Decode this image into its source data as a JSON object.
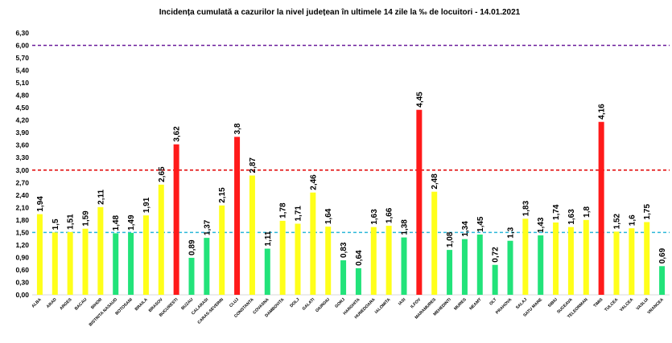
{
  "chart_data": {
    "type": "bar",
    "title": "Incidența cumulată a cazurilor la nivel județean în ultimele 14 zile   la ‰ de locuitori  - 14.01.2021",
    "xlabel": "",
    "ylabel": "",
    "ylim": [
      0,
      6.3
    ],
    "ytick_labels": [
      "0,00",
      "0,30",
      "0,60",
      "0,90",
      "1,20",
      "1,50",
      "1,80",
      "2,10",
      "2,40",
      "2,70",
      "3,00",
      "3,30",
      "3,60",
      "3,90",
      "4,20",
      "4,50",
      "4,80",
      "5,10",
      "5,40",
      "5,70",
      "6,00",
      "6,30"
    ],
    "grid": false,
    "legend": "none",
    "categories": [
      "ALBA",
      "ARAD",
      "ARGES",
      "BACAU",
      "BIHOR",
      "BISTRITA NASAUD",
      "BOTOSANI",
      "BRAILA",
      "BRASOV",
      "BUCURESTI",
      "BUZAU",
      "CALARASI",
      "CARAS-SEVERIN",
      "CLUJ",
      "CONSTANTA",
      "COVASNA",
      "DAMBOVITA",
      "DOLJ",
      "GALATI",
      "GIURGIU",
      "GORJ",
      "HARGHITA",
      "HUNEDOARA",
      "IALOMITA",
      "IASI",
      "ILFOV",
      "MARAMURES",
      "MEHEDINTI",
      "MURES",
      "NEAMT",
      "OLT",
      "PRAHOVA",
      "SALAJ",
      "SATU MARE",
      "SIBIU",
      "SUCEAVA",
      "TELEORMAN",
      "TIMIS",
      "TULCEA",
      "VALCEA",
      "VASLUI",
      "VRANCEA"
    ],
    "values": [
      1.94,
      1.5,
      1.51,
      1.59,
      2.11,
      1.48,
      1.49,
      1.91,
      2.65,
      3.62,
      0.89,
      1.37,
      2.15,
      3.8,
      2.87,
      1.11,
      1.78,
      1.71,
      2.46,
      1.64,
      0.83,
      0.64,
      1.63,
      1.66,
      1.38,
      4.45,
      2.48,
      1.08,
      1.34,
      1.45,
      0.72,
      1.3,
      1.83,
      1.43,
      1.74,
      1.63,
      1.8,
      4.16,
      1.52,
      1.6,
      1.75,
      0.69
    ],
    "value_labels": [
      "1,94",
      "1,5",
      "1,51",
      "1,59",
      "2,11",
      "1,48",
      "1,49",
      "1,91",
      "2,65",
      "3,62",
      "0,89",
      "1,37",
      "2,15",
      "3,8",
      "2,87",
      "1,11",
      "1,78",
      "1,71",
      "2,46",
      "1,64",
      "0,83",
      "0,64",
      "1,63",
      "1,66",
      "1,38",
      "4,45",
      "2,48",
      "1,08",
      "1,34",
      "1,45",
      "0,72",
      "1,3",
      "1,83",
      "1,43",
      "1,74",
      "1,63",
      "1,8",
      "4,16",
      "1,52",
      "1,6",
      "1,75",
      "0,69"
    ],
    "reference_lines": [
      {
        "value": 1.5,
        "color": "#2ab7d9"
      },
      {
        "value": 3.0,
        "color": "#e00000"
      },
      {
        "value": 6.0,
        "color": "#6a1b9a"
      }
    ],
    "colors": {
      "below_1_5": "#22e37a",
      "between_1_5_and_3": "#ffff1a",
      "above_3": "#ff1a1a"
    }
  }
}
